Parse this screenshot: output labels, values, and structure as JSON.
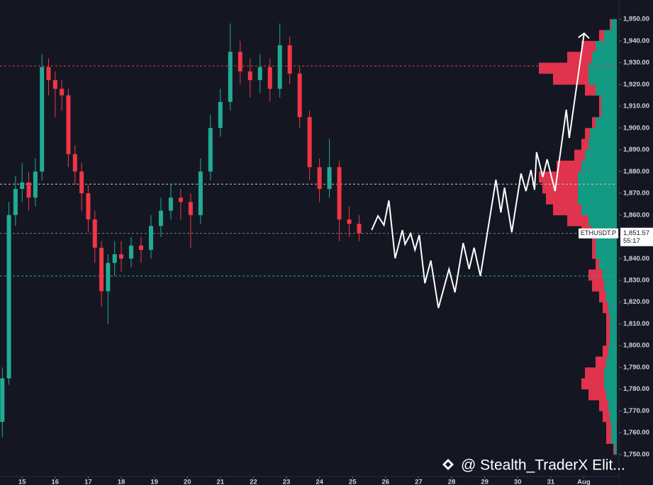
{
  "chart_data": {
    "type": "candlestick",
    "symbol": "ETHUSDT.P",
    "last_price_label": "1,851.57",
    "countdown": "55:17",
    "watermark": "@ Stealth_TraderX Elit...",
    "xlim": [
      14.33,
      33.0
    ],
    "ylim": [
      1741.2,
      1958.8
    ],
    "xticks": [
      {
        "value": 15,
        "label": "15"
      },
      {
        "value": 16,
        "label": "16"
      },
      {
        "value": 17,
        "label": "17"
      },
      {
        "value": 18,
        "label": "18"
      },
      {
        "value": 19,
        "label": "19"
      },
      {
        "value": 20,
        "label": "20"
      },
      {
        "value": 21,
        "label": "21"
      },
      {
        "value": 22,
        "label": "22"
      },
      {
        "value": 23,
        "label": "23"
      },
      {
        "value": 24,
        "label": "24"
      },
      {
        "value": 25,
        "label": "25"
      },
      {
        "value": 26,
        "label": "26"
      },
      {
        "value": 27,
        "label": "27"
      },
      {
        "value": 28,
        "label": "28"
      },
      {
        "value": 29,
        "label": "29"
      },
      {
        "value": 30,
        "label": "30"
      },
      {
        "value": 31,
        "label": "31"
      },
      {
        "value": 32,
        "label": "Aug"
      }
    ],
    "yticks": [
      {
        "value": 1750,
        "label": "1,750.00"
      },
      {
        "value": 1760,
        "label": "1,760.00"
      },
      {
        "value": 1770,
        "label": "1,770.00"
      },
      {
        "value": 1780,
        "label": "1,780.00"
      },
      {
        "value": 1790,
        "label": "1,790.00"
      },
      {
        "value": 1800,
        "label": "1,800.00"
      },
      {
        "value": 1810,
        "label": "1,810.00"
      },
      {
        "value": 1820,
        "label": "1,820.00"
      },
      {
        "value": 1830,
        "label": "1,830.00"
      },
      {
        "value": 1840,
        "label": "1,840.00"
      },
      {
        "value": 1850,
        "label": "1,850.00"
      },
      {
        "value": 1860,
        "label": "1,860.00"
      },
      {
        "value": 1870,
        "label": "1,870.00"
      },
      {
        "value": 1880,
        "label": "1,880.00"
      },
      {
        "value": 1890,
        "label": "1,890.00"
      },
      {
        "value": 1900,
        "label": "1,900.00"
      },
      {
        "value": 1910,
        "label": "1,910.00"
      },
      {
        "value": 1920,
        "label": "1,920.00"
      },
      {
        "value": 1930,
        "label": "1,930.00"
      },
      {
        "value": 1940,
        "label": "1,940.00"
      },
      {
        "value": 1950,
        "label": "1,950.00"
      }
    ],
    "up_color": "#22ab94",
    "down_color": "#f23645",
    "x": [
      14.4,
      14.6,
      14.8,
      15.0,
      15.2,
      15.4,
      15.6,
      15.8,
      16.0,
      16.2,
      16.4,
      16.6,
      16.8,
      17.0,
      17.2,
      17.4,
      17.6,
      17.8,
      18.0,
      18.3,
      18.6,
      18.9,
      19.2,
      19.5,
      19.8,
      20.1,
      20.4,
      20.7,
      21.0,
      21.3,
      21.6,
      21.9,
      22.2,
      22.5,
      22.8,
      23.1,
      23.4,
      23.7,
      24.0,
      24.3,
      24.6,
      24.9,
      25.2
    ],
    "open": [
      1765,
      1785,
      1860,
      1872,
      1875,
      1868,
      1880,
      1928,
      1922,
      1918,
      1915,
      1888,
      1880,
      1870,
      1858,
      1845,
      1825,
      1838,
      1842,
      1840,
      1846,
      1844,
      1855,
      1862,
      1868,
      1866,
      1860,
      1880,
      1900,
      1912,
      1935,
      1926,
      1922,
      1928,
      1918,
      1938,
      1925,
      1905,
      1882,
      1872,
      1882,
      1858,
      1856
    ],
    "close": [
      1785,
      1860,
      1872,
      1875,
      1868,
      1880,
      1928,
      1922,
      1918,
      1915,
      1888,
      1880,
      1870,
      1858,
      1845,
      1825,
      1838,
      1842,
      1840,
      1846,
      1844,
      1855,
      1862,
      1868,
      1866,
      1860,
      1880,
      1900,
      1912,
      1935,
      1926,
      1922,
      1928,
      1918,
      1938,
      1925,
      1905,
      1882,
      1872,
      1882,
      1858,
      1856,
      1851.57
    ],
    "high": [
      1790,
      1866,
      1878,
      1884,
      1880,
      1886,
      1934,
      1932,
      1926,
      1922,
      1918,
      1892,
      1884,
      1874,
      1862,
      1848,
      1842,
      1848,
      1848,
      1850,
      1850,
      1860,
      1868,
      1874,
      1872,
      1870,
      1886,
      1906,
      1918,
      1948,
      1940,
      1932,
      1934,
      1932,
      1948,
      1942,
      1928,
      1908,
      1886,
      1895,
      1885,
      1864,
      1860
    ],
    "low": [
      1758,
      1782,
      1855,
      1866,
      1862,
      1864,
      1876,
      1915,
      1905,
      1908,
      1882,
      1874,
      1862,
      1852,
      1838,
      1818,
      1810,
      1832,
      1834,
      1836,
      1838,
      1840,
      1850,
      1858,
      1858,
      1845,
      1856,
      1876,
      1896,
      1908,
      1920,
      1914,
      1916,
      1912,
      1914,
      1920,
      1900,
      1876,
      1866,
      1868,
      1848,
      1850,
      1848
    ],
    "levels": [
      {
        "value": 1928.5,
        "color": "#f23645"
      },
      {
        "value": 1874.2,
        "color": "#cccccc"
      },
      {
        "value": 1832,
        "color": "#22ab94"
      },
      {
        "value": 1851.57,
        "color": "#787b86"
      }
    ],
    "projection": {
      "color": "#ffffff",
      "x": [
        25.58,
        25.77,
        25.95,
        26.1,
        26.29,
        26.51,
        26.59,
        26.76,
        26.89,
        27.02,
        27.19,
        27.37,
        27.6,
        27.92,
        28.1,
        28.35,
        28.53,
        28.68,
        28.87,
        29.34,
        29.49,
        29.6,
        29.82,
        30.1,
        30.25,
        30.4,
        30.51,
        30.57,
        30.76,
        30.89,
        31.13,
        31.47,
        31.56,
        32.01
      ],
      "values": [
        1853.1,
        1859.6,
        1855.4,
        1866.7,
        1840.1,
        1853.1,
        1846.6,
        1851.5,
        1844,
        1850.8,
        1828.7,
        1839.1,
        1817.3,
        1835.2,
        1824.5,
        1847.2,
        1835.2,
        1845,
        1832,
        1876.2,
        1861.2,
        1872.6,
        1852.1,
        1879.1,
        1871,
        1880.7,
        1871.6,
        1888.9,
        1877.5,
        1885.6,
        1871,
        1908.4,
        1895.4,
        1943.5
      ]
    },
    "volume_profile": {
      "buy_color": "#129a82",
      "sell_color": "#e0334d",
      "prices": [
        1750,
        1755,
        1760,
        1765,
        1770,
        1775,
        1780,
        1785,
        1790,
        1795,
        1800,
        1805,
        1810,
        1815,
        1820,
        1825,
        1830,
        1835,
        1840,
        1845,
        1850,
        1855,
        1860,
        1865,
        1870,
        1875,
        1880,
        1885,
        1890,
        1895,
        1900,
        1905,
        1910,
        1915,
        1920,
        1925,
        1930,
        1935,
        1940,
        1945
      ],
      "buy": [
        3,
        8,
        8,
        10,
        12,
        15,
        18,
        18,
        15,
        12,
        10,
        10,
        10,
        12,
        15,
        18,
        20,
        25,
        30,
        30,
        35,
        40,
        50,
        55,
        55,
        55,
        50,
        45,
        40,
        38,
        30,
        22,
        22,
        30,
        40,
        40,
        35,
        30,
        18,
        8
      ],
      "sell": [
        2,
        7,
        7,
        10,
        13,
        25,
        32,
        27,
        15,
        8,
        5,
        5,
        5,
        8,
        10,
        17,
        20,
        5,
        5,
        5,
        15,
        30,
        40,
        45,
        50,
        55,
        35,
        15,
        10,
        7,
        5,
        3,
        3,
        15,
        50,
        70,
        35,
        20,
        7,
        2
      ]
    }
  }
}
